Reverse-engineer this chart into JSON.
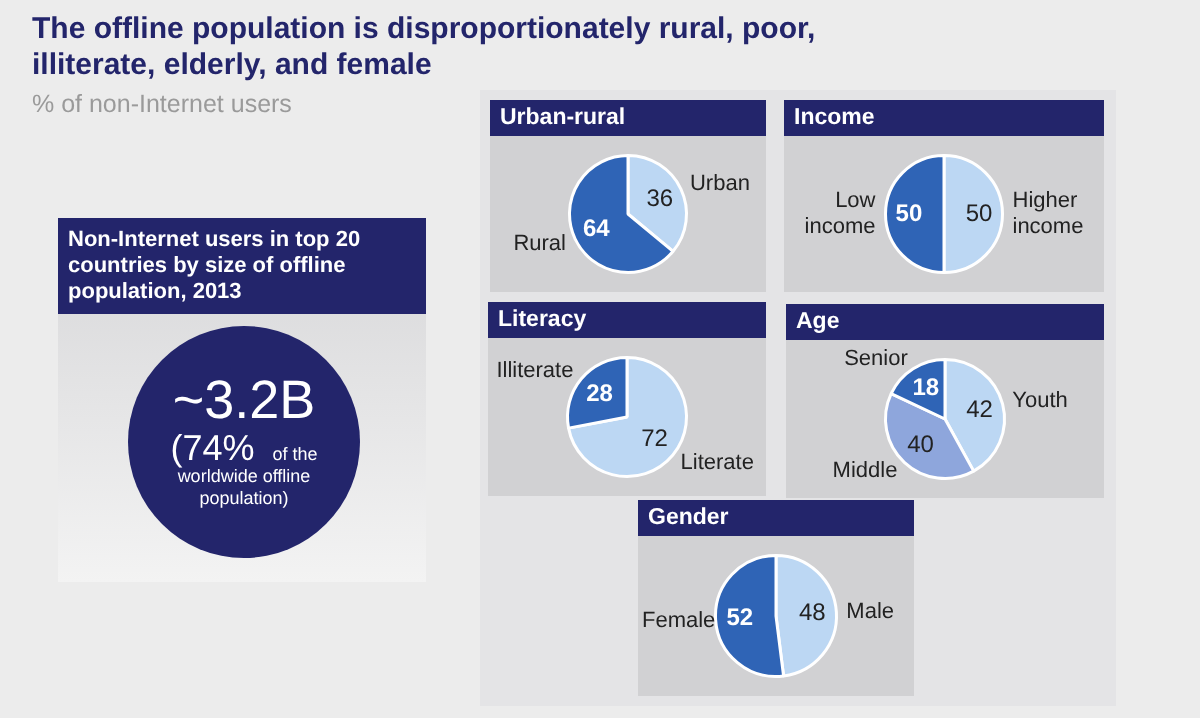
{
  "chart_data": [
    {
      "type": "other",
      "title": "The offline population is disproportionately rural, poor, illiterate, elderly, and female",
      "subtitle": "% of non-Internet users",
      "annotations": [
        "Non-Internet users in top 20 countries by size of offline population, 2013",
        "~3.2B",
        "(74% of the worldwide offline population)"
      ]
    },
    {
      "type": "pie",
      "title": "Urban-rural",
      "categories": [
        "Urban",
        "Rural"
      ],
      "values": [
        36,
        64
      ],
      "colors": [
        "#bcd7f3",
        "#2f64b6"
      ],
      "data_labels": true
    },
    {
      "type": "pie",
      "title": "Income",
      "categories": [
        "Higher income",
        "Low income"
      ],
      "values": [
        50,
        50
      ],
      "colors": [
        "#bcd7f3",
        "#2f64b6"
      ],
      "data_labels": true
    },
    {
      "type": "pie",
      "title": "Literacy",
      "categories": [
        "Literate",
        "Illiterate"
      ],
      "values": [
        72,
        28
      ],
      "colors": [
        "#bcd7f3",
        "#2f64b6"
      ],
      "data_labels": true
    },
    {
      "type": "pie",
      "title": "Age",
      "categories": [
        "Youth",
        "Middle",
        "Senior"
      ],
      "values": [
        42,
        40,
        18
      ],
      "colors": [
        "#bcd7f3",
        "#8ea6dc",
        "#2f64b6"
      ],
      "data_labels": true
    },
    {
      "type": "pie",
      "title": "Gender",
      "categories": [
        "Male",
        "Female"
      ],
      "values": [
        48,
        52
      ],
      "colors": [
        "#bcd7f3",
        "#2f64b6"
      ],
      "data_labels": true
    }
  ]
}
